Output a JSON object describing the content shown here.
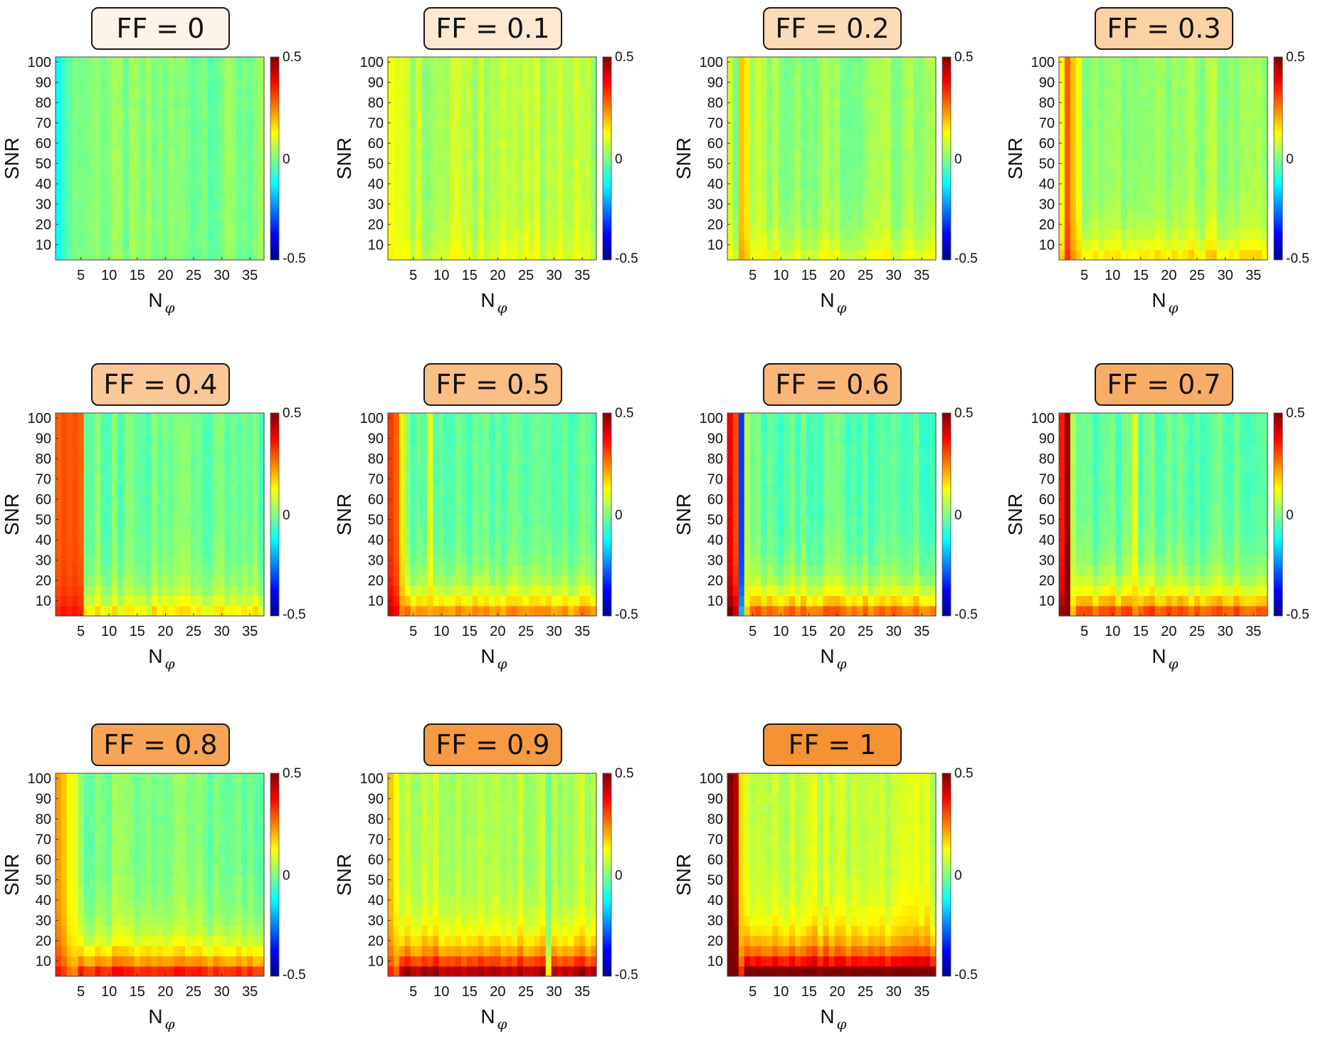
{
  "figure": {
    "ylabel": "SNR",
    "xlabel_main": "N",
    "xlabel_sub": "φ",
    "colorbar": {
      "max_label": "0.5",
      "mid_label": "0",
      "min_label": "-0.5",
      "range": [
        -0.5,
        0.5
      ],
      "colormap": "jet"
    }
  },
  "chart_data": [
    {
      "type": "heatmap",
      "title": "FF = 0",
      "ff": 0,
      "title_bg": "#fef3e8",
      "x_ticks": [
        "5",
        "10",
        "15",
        "20",
        "25",
        "30",
        "35"
      ],
      "y_ticks": [
        "10",
        "20",
        "30",
        "40",
        "50",
        "60",
        "70",
        "80",
        "90",
        "100"
      ],
      "x_range": [
        1,
        37
      ],
      "y_range": [
        5,
        100
      ],
      "clim": [
        -0.5,
        0.5
      ],
      "base": 0.0,
      "low_snr_bias": 0.0,
      "columns": [
        {
          "x": 1,
          "value": -0.12
        },
        {
          "x": 2,
          "value": -0.06
        },
        {
          "x": 8,
          "value": 0.02
        }
      ]
    },
    {
      "type": "heatmap",
      "title": "FF = 0.1",
      "ff": 0.1,
      "title_bg": "#fde8d2",
      "x_ticks": [
        "5",
        "10",
        "15",
        "20",
        "25",
        "30",
        "35"
      ],
      "y_ticks": [
        "10",
        "20",
        "30",
        "40",
        "50",
        "60",
        "70",
        "80",
        "90",
        "100"
      ],
      "x_range": [
        1,
        37
      ],
      "y_range": [
        5,
        100
      ],
      "clim": [
        -0.5,
        0.5
      ],
      "base": 0.05,
      "low_snr_bias": 0.04,
      "columns": [
        {
          "x": 1,
          "value": 0.12
        },
        {
          "x": 2,
          "value": 0.1
        },
        {
          "x": 3,
          "value": 0.1
        }
      ]
    },
    {
      "type": "heatmap",
      "title": "FF = 0.2",
      "ff": 0.2,
      "title_bg": "#fcdcb8",
      "x_ticks": [
        "5",
        "10",
        "15",
        "20",
        "25",
        "30",
        "35"
      ],
      "y_ticks": [
        "10",
        "20",
        "30",
        "40",
        "50",
        "60",
        "70",
        "80",
        "90",
        "100"
      ],
      "x_range": [
        1,
        37
      ],
      "y_range": [
        5,
        100
      ],
      "clim": [
        -0.5,
        0.5
      ],
      "base": 0.02,
      "low_snr_bias": 0.08,
      "columns": [
        {
          "x": 1,
          "value": 0.08
        },
        {
          "x": 3,
          "value": 0.18
        },
        {
          "x": 4,
          "value": 0.14
        },
        {
          "x": 6,
          "value": 0.08
        }
      ]
    },
    {
      "type": "heatmap",
      "title": "FF = 0.3",
      "ff": 0.3,
      "title_bg": "#fbd2a4",
      "x_ticks": [
        "5",
        "10",
        "15",
        "20",
        "25",
        "30",
        "35"
      ],
      "y_ticks": [
        "10",
        "20",
        "30",
        "40",
        "50",
        "60",
        "70",
        "80",
        "90",
        "100"
      ],
      "x_range": [
        1,
        37
      ],
      "y_range": [
        5,
        100
      ],
      "clim": [
        -0.5,
        0.5
      ],
      "base": 0.03,
      "low_snr_bias": 0.12,
      "columns": [
        {
          "x": 1,
          "value": 0.12
        },
        {
          "x": 2,
          "value": 0.28
        },
        {
          "x": 3,
          "value": 0.18
        },
        {
          "x": 4,
          "value": 0.12
        }
      ]
    },
    {
      "type": "heatmap",
      "title": "FF = 0.4",
      "ff": 0.4,
      "title_bg": "#fac896",
      "x_ticks": [
        "5",
        "10",
        "15",
        "20",
        "25",
        "30",
        "35"
      ],
      "y_ticks": [
        "10",
        "20",
        "30",
        "40",
        "50",
        "60",
        "70",
        "80",
        "90",
        "100"
      ],
      "x_range": [
        1,
        37
      ],
      "y_range": [
        5,
        100
      ],
      "clim": [
        -0.5,
        0.5
      ],
      "base": -0.02,
      "low_snr_bias": 0.15,
      "columns": [
        {
          "x": 1,
          "value": 0.28
        },
        {
          "x": 2,
          "value": 0.3
        },
        {
          "x": 3,
          "value": 0.28
        },
        {
          "x": 4,
          "value": 0.3
        },
        {
          "x": 5,
          "value": 0.28
        }
      ]
    },
    {
      "type": "heatmap",
      "title": "FF = 0.5",
      "ff": 0.5,
      "title_bg": "#f9bf85",
      "x_ticks": [
        "5",
        "10",
        "15",
        "20",
        "25",
        "30",
        "35"
      ],
      "y_ticks": [
        "10",
        "20",
        "30",
        "40",
        "50",
        "60",
        "70",
        "80",
        "90",
        "100"
      ],
      "x_range": [
        1,
        37
      ],
      "y_range": [
        5,
        100
      ],
      "clim": [
        -0.5,
        0.5
      ],
      "base": -0.03,
      "low_snr_bias": 0.26,
      "columns": [
        {
          "x": 1,
          "value": 0.32
        },
        {
          "x": 2,
          "value": 0.28
        },
        {
          "x": 3,
          "value": 0.14
        },
        {
          "x": 8,
          "value": 0.1
        }
      ]
    },
    {
      "type": "heatmap",
      "title": "FF = 0.6",
      "ff": 0.6,
      "title_bg": "#f9b676",
      "x_ticks": [
        "5",
        "10",
        "15",
        "20",
        "25",
        "30",
        "35"
      ],
      "y_ticks": [
        "10",
        "20",
        "30",
        "40",
        "50",
        "60",
        "70",
        "80",
        "90",
        "100"
      ],
      "x_range": [
        1,
        37
      ],
      "y_range": [
        5,
        100
      ],
      "clim": [
        -0.5,
        0.5
      ],
      "base": -0.04,
      "low_snr_bias": 0.3,
      "columns": [
        {
          "x": 1,
          "value": 0.38
        },
        {
          "x": 2,
          "value": 0.3
        },
        {
          "x": 3,
          "value": -0.32
        },
        {
          "x": 4,
          "value": 0.05
        }
      ]
    },
    {
      "type": "heatmap",
      "title": "FF = 0.7",
      "ff": 0.7,
      "title_bg": "#f8ad66",
      "x_ticks": [
        "5",
        "10",
        "15",
        "20",
        "25",
        "30",
        "35"
      ],
      "y_ticks": [
        "10",
        "20",
        "30",
        "40",
        "50",
        "60",
        "70",
        "80",
        "90",
        "100"
      ],
      "x_range": [
        1,
        37
      ],
      "y_range": [
        5,
        100
      ],
      "clim": [
        -0.5,
        0.5
      ],
      "base": -0.03,
      "low_snr_bias": 0.32,
      "columns": [
        {
          "x": 1,
          "value": 0.35
        },
        {
          "x": 2,
          "value": 0.48
        },
        {
          "x": 3,
          "value": 0.05
        },
        {
          "x": 14,
          "value": 0.1
        }
      ]
    },
    {
      "type": "heatmap",
      "title": "FF = 0.8",
      "ff": 0.8,
      "title_bg": "#f7a455",
      "x_ticks": [
        "5",
        "10",
        "15",
        "20",
        "25",
        "30",
        "35"
      ],
      "y_ticks": [
        "10",
        "20",
        "30",
        "40",
        "50",
        "60",
        "70",
        "80",
        "90",
        "100"
      ],
      "x_range": [
        1,
        37
      ],
      "y_range": [
        5,
        100
      ],
      "clim": [
        -0.5,
        0.5
      ],
      "base": 0.0,
      "low_snr_bias": 0.34,
      "columns": [
        {
          "x": 1,
          "value": 0.22
        },
        {
          "x": 2,
          "value": 0.18
        },
        {
          "x": 3,
          "value": 0.12
        },
        {
          "x": 4,
          "value": 0.1
        }
      ]
    },
    {
      "type": "heatmap",
      "title": "FF = 0.9",
      "ff": 0.9,
      "title_bg": "#f69a44",
      "x_ticks": [
        "5",
        "10",
        "15",
        "20",
        "25",
        "30",
        "35"
      ],
      "y_ticks": [
        "10",
        "20",
        "30",
        "40",
        "50",
        "60",
        "70",
        "80",
        "90",
        "100"
      ],
      "x_range": [
        1,
        37
      ],
      "y_range": [
        5,
        100
      ],
      "clim": [
        -0.5,
        0.5
      ],
      "base": 0.05,
      "low_snr_bias": 0.4,
      "columns": [
        {
          "x": 1,
          "value": 0.18
        },
        {
          "x": 2,
          "value": 0.12
        },
        {
          "x": 29,
          "value": -0.02
        }
      ]
    },
    {
      "type": "heatmap",
      "title": "FF = 1",
      "ff": 1,
      "title_bg": "#f59233",
      "x_ticks": [
        "5",
        "10",
        "15",
        "20",
        "25",
        "30",
        "35"
      ],
      "y_ticks": [
        "10",
        "20",
        "30",
        "40",
        "50",
        "60",
        "70",
        "80",
        "90",
        "100"
      ],
      "x_range": [
        1,
        37
      ],
      "y_range": [
        5,
        100
      ],
      "clim": [
        -0.5,
        0.5
      ],
      "base": 0.07,
      "low_snr_bias": 0.45,
      "columns": [
        {
          "x": 1,
          "value": 0.5
        },
        {
          "x": 2,
          "value": 0.45
        },
        {
          "x": 3,
          "value": 0.15
        }
      ]
    }
  ]
}
